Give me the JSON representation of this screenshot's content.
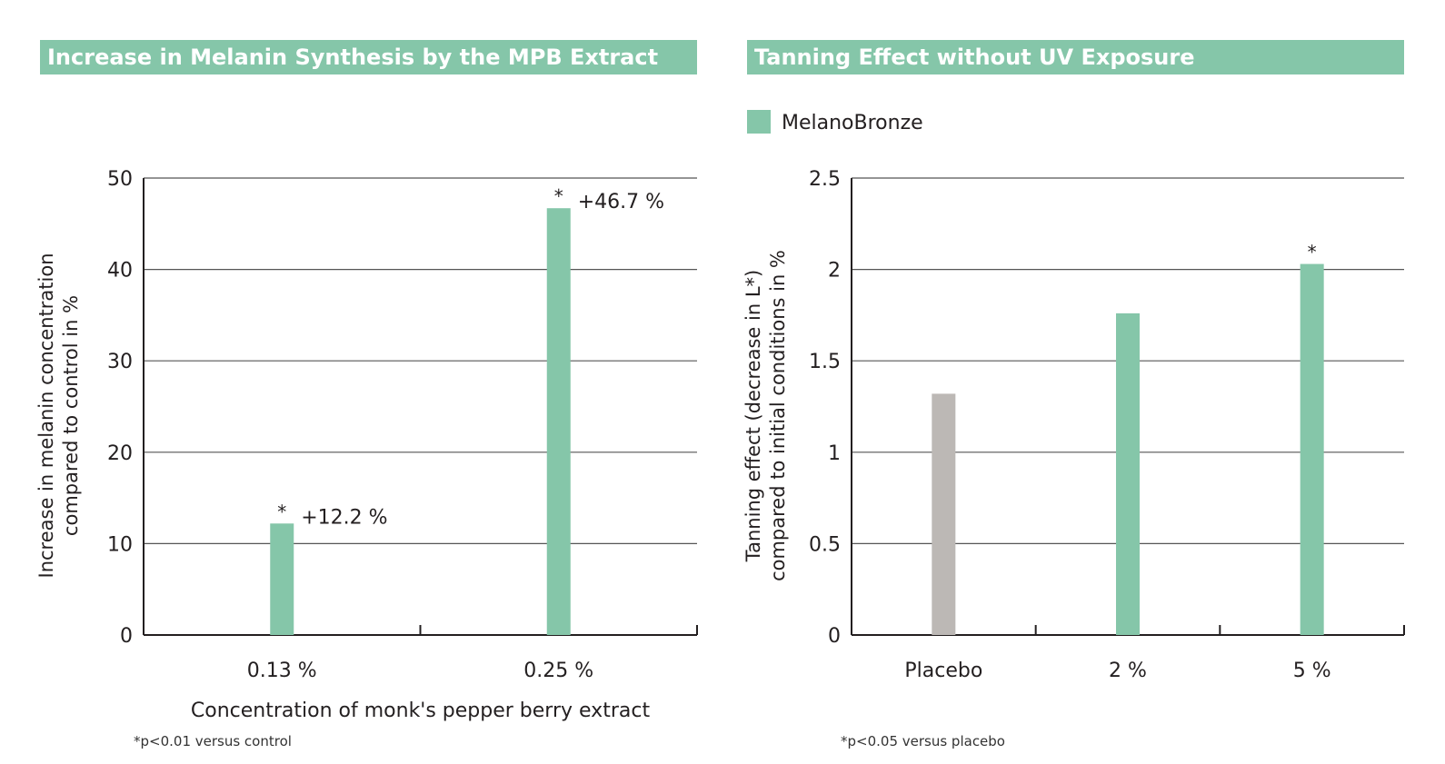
{
  "colors": {
    "accent": "#85c6a9",
    "placebo": "#bcb8b5",
    "grid": "#555555",
    "text": "#231f20"
  },
  "chart_data": [
    {
      "type": "bar",
      "title": "Increase in Melanin Synthesis by the MPB Extract",
      "ylabel_lines": [
        "Increase in melanin concentration",
        "compared to control in %"
      ],
      "xlabel": "Concentration of monk's pepper berry extract",
      "categories": [
        "0.13 %",
        "0.25 %"
      ],
      "values": [
        12.2,
        46.7
      ],
      "value_labels": [
        "+12.2 %",
        "+46.7 %"
      ],
      "significance": [
        "*",
        "*"
      ],
      "ylim": [
        0,
        50
      ],
      "yticks": [
        0,
        10,
        20,
        30,
        40,
        50
      ],
      "ytick_labels": [
        "0",
        "10",
        "20",
        "30",
        "40",
        "50"
      ],
      "grid": true,
      "footnote": "*p<0.01 versus control"
    },
    {
      "type": "bar",
      "title": "Tanning Effect without UV Exposure",
      "legend": [
        {
          "name": "MelanoBronze",
          "color": "#85c6a9"
        }
      ],
      "legend_position": "top-left",
      "ylabel_lines": [
        "Tanning effect (decrease in L*)",
        "compared to initial conditions in %"
      ],
      "xlabel": "",
      "categories": [
        "Placebo",
        "2 %",
        "5 %"
      ],
      "values": [
        1.32,
        1.76,
        2.03
      ],
      "bar_colors": [
        "#bcb8b5",
        "#85c6a9",
        "#85c6a9"
      ],
      "significance": [
        "",
        "",
        "*"
      ],
      "ylim": [
        0,
        2.5
      ],
      "yticks": [
        0,
        0.5,
        1,
        1.5,
        2,
        2.5
      ],
      "ytick_labels": [
        "0",
        "0.5",
        "1",
        "1.5",
        "2",
        "2.5"
      ],
      "grid": true,
      "footnote": "*p<0.05 versus placebo"
    }
  ]
}
